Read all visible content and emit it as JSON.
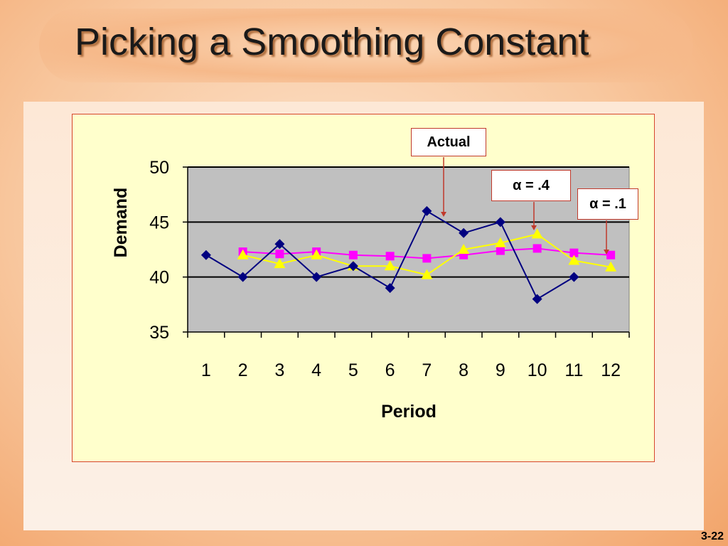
{
  "slide": {
    "title": "Picking a Smoothing Constant",
    "page_number": "3-22"
  },
  "callouts": {
    "actual": "Actual",
    "alpha_4": "α = .4",
    "alpha_1": "α = .1"
  },
  "chart_data": {
    "type": "line",
    "xlabel": "Period",
    "ylabel": "Demand",
    "categories": [
      1,
      2,
      3,
      4,
      5,
      6,
      7,
      8,
      9,
      10,
      11,
      12
    ],
    "ylim": [
      35,
      50
    ],
    "yticks": [
      35,
      40,
      45,
      50
    ],
    "grid": true,
    "series": [
      {
        "name": "Actual",
        "color": "#000080",
        "marker": "diamond",
        "x": [
          1,
          2,
          3,
          4,
          5,
          6,
          7,
          8,
          9,
          10,
          11
        ],
        "values": [
          42,
          40,
          43,
          40,
          41,
          39,
          46,
          44,
          45,
          38,
          40
        ]
      },
      {
        "name": "α = .1",
        "color": "#ff00ff",
        "marker": "square",
        "x": [
          2,
          3,
          4,
          5,
          6,
          7,
          8,
          9,
          10,
          11,
          12
        ],
        "values": [
          42.3,
          42.1,
          42.3,
          42.0,
          41.9,
          41.7,
          42.0,
          42.4,
          42.6,
          42.2,
          42.0
        ]
      },
      {
        "name": "α = .4",
        "color": "#ffff00",
        "marker": "triangle",
        "x": [
          2,
          3,
          4,
          5,
          6,
          7,
          8,
          9,
          10,
          11,
          12
        ],
        "values": [
          42,
          41.2,
          42,
          41,
          41,
          40.2,
          42.5,
          43.1,
          43.9,
          41.5,
          40.9
        ]
      }
    ],
    "colors": {
      "plot_background": "#c0c0c0",
      "chart_background": "#ffffcc",
      "callout_border": "#c0392b"
    }
  }
}
